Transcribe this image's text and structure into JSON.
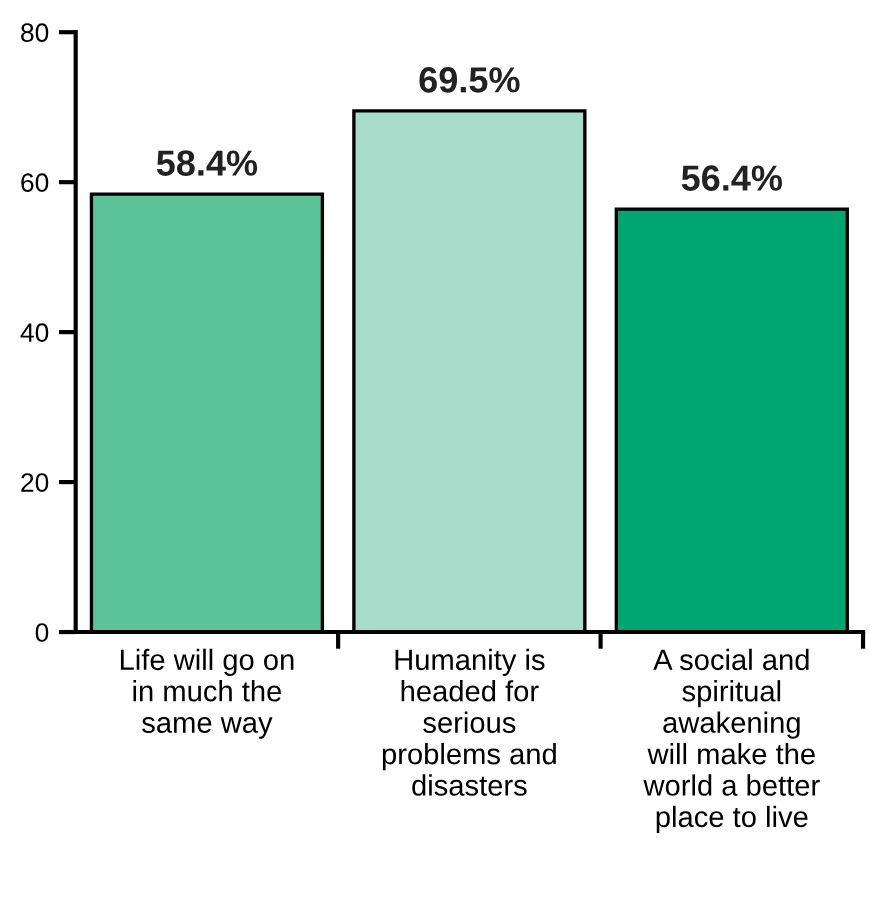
{
  "chart_data": {
    "type": "bar",
    "categories": [
      "Life will go on\nin much the\nsame way",
      "Humanity is\nheaded for\nserious\nproblems and\ndisasters",
      "A social and\nspiritual\nawakening\nwill make the\nworld a better\nplace to live"
    ],
    "values": [
      58.4,
      69.5,
      56.4
    ],
    "colors": [
      "#5bc398",
      "#a8dcca",
      "#00a56f"
    ],
    "value_labels": [
      "58.4%",
      "69.5%",
      "56.4%"
    ],
    "ylim": [
      0,
      80
    ],
    "yticks": [
      0,
      20,
      40,
      60,
      80
    ],
    "grid": false,
    "legend": false
  }
}
